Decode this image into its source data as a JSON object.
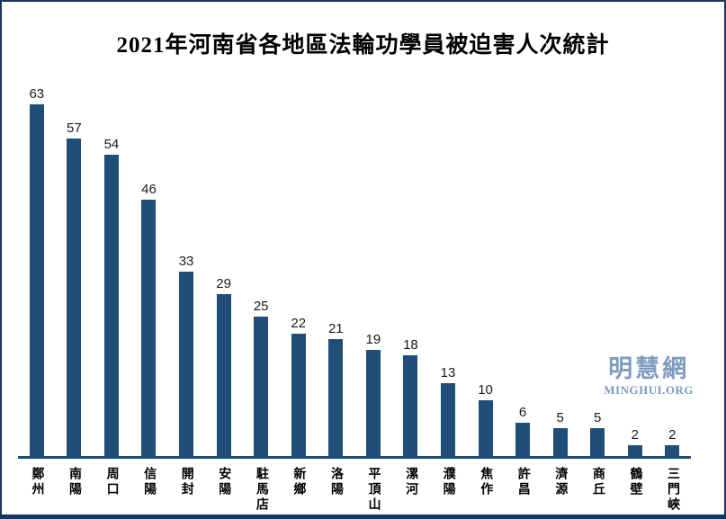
{
  "page": {
    "title": "2021年河南省各地區法輪功學員被迫害人次統計"
  },
  "watermark": {
    "logo_text": "明慧網",
    "site_text": "MINGHUI.ORG"
  },
  "colors": {
    "bar": "#1F4E79",
    "axis": "#1F4E79",
    "border": "#17375E",
    "watermark": "#7E9CBF",
    "value_label": "#1A1A1A"
  },
  "chart_data": {
    "type": "bar",
    "title": "2021年河南省各地區法輪功學員被迫害人次統計",
    "categories": [
      "鄭州",
      "南陽",
      "周口",
      "信陽",
      "開封",
      "安陽",
      "駐馬店",
      "新鄉",
      "洛陽",
      "平頂山",
      "漯河",
      "濮陽",
      "焦作",
      "許昌",
      "濟源",
      "商丘",
      "鶴壁",
      "三門峽"
    ],
    "values": [
      63,
      57,
      54,
      46,
      33,
      29,
      25,
      22,
      21,
      19,
      18,
      13,
      10,
      6,
      5,
      5,
      2,
      2
    ],
    "xlabel": "",
    "ylabel": "",
    "ylim": [
      0,
      65
    ],
    "grid": false,
    "legend": false,
    "value_labels_shown": true,
    "axes_shown": "baseline-only",
    "bar_orientation": "vertical",
    "category_label_orientation": "vertical-upright"
  }
}
